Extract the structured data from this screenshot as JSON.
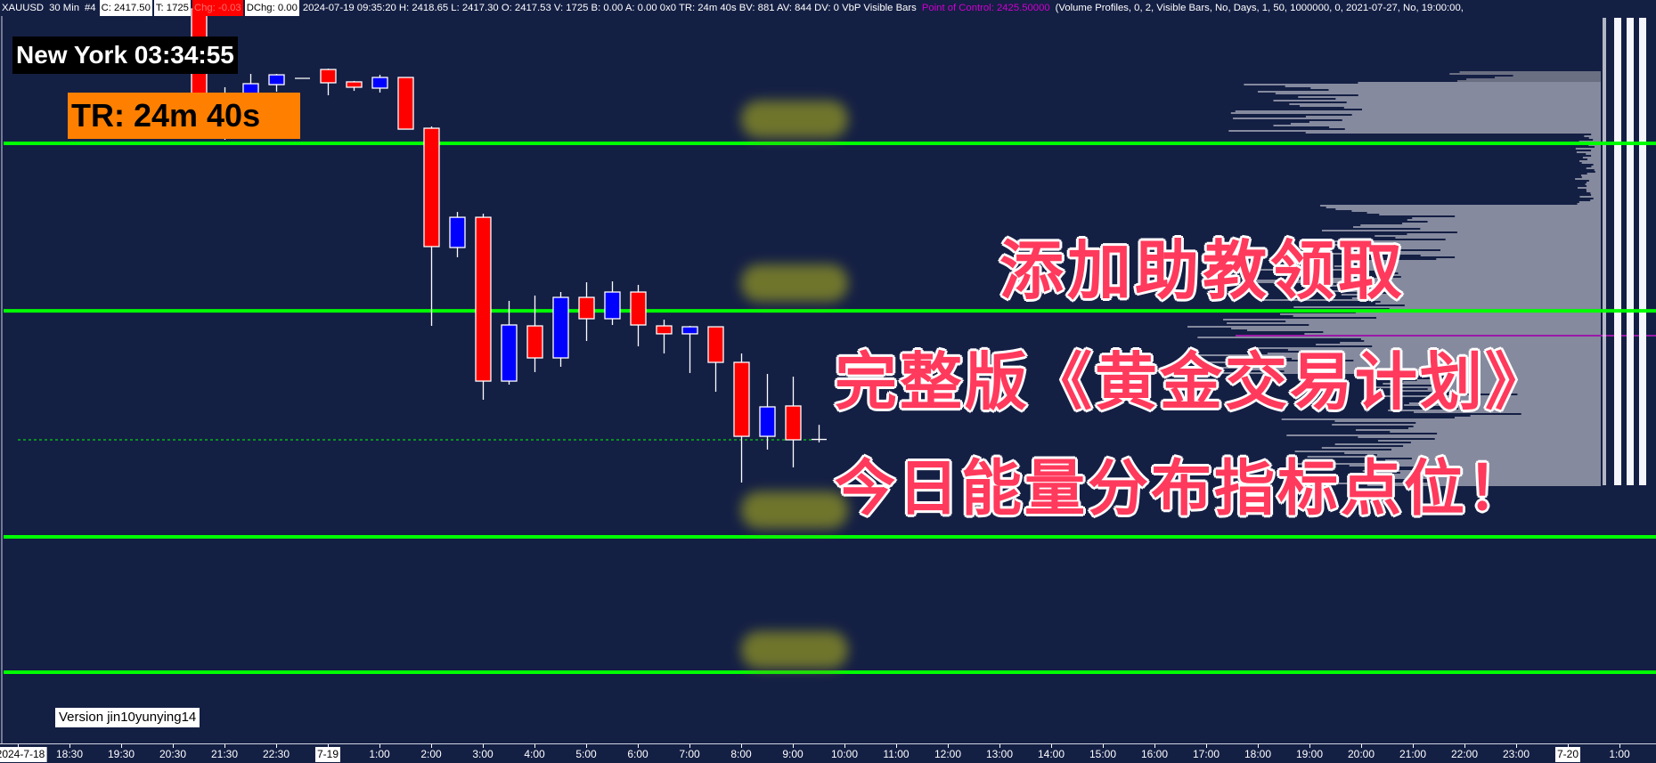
{
  "header": {
    "segments": [
      {
        "text": "XAUUSD",
        "style": "plain"
      },
      {
        "text": "30 Min",
        "style": "plain"
      },
      {
        "text": "#4",
        "style": "plain"
      },
      {
        "text": "C: 2417.50",
        "style": "box-white"
      },
      {
        "text": "T: 1725",
        "style": "box-white"
      },
      {
        "text": "Chg: -0.03",
        "style": "box-red"
      },
      {
        "text": "DChg: 0.00",
        "style": "box-white"
      },
      {
        "text": "2024-07-19 09:35:20 H: 2418.65 L: 2417.30 O: 2417.53 V: 1725 B: 0.00 A: 0.00 0x0 TR: 24m 40s BV: 881 AV: 844 DV: 0 VbP Visible Bars",
        "style": "plain"
      },
      {
        "text": "Point of Control: 2425.50000",
        "style": "magenta"
      },
      {
        "text": "(Volume Profiles, 0, 2, Visible Bars, No, Days, 1, 50, 1000000, 0, 2021-07-27, No, 19:00:00, ",
        "style": "plain"
      }
    ]
  },
  "clock_label": "New York 03:34:55",
  "time_remaining_label": "TR: 24m 40s",
  "version_label": "Version jin10yunying14",
  "promo": {
    "line1": "添加助教领取",
    "line2": "完整版《黄金交易计划》",
    "line3": "今日能量分布指标点位！",
    "color": "#ff3a5c"
  },
  "colors": {
    "background": "#141f44",
    "up_candle": "#0000ff",
    "down_candle": "#ff0000",
    "level_line": "#00ff00",
    "poc_line": "#9b19a8",
    "volume_profile": "#858a9e"
  },
  "chart_data": {
    "type": "candlestick",
    "symbol": "XAUUSD",
    "interval": "30 Min",
    "last_price": 2417.5,
    "point_of_control": 2425.5,
    "level_lines": [
      2440.27,
      2427.41,
      2410.05,
      2399.65
    ],
    "candles": [
      {
        "o": 2450.59,
        "h": 2452.0,
        "l": 2443.76,
        "c": 2443.76
      },
      {
        "o": 2443.4,
        "h": 2444.58,
        "l": 2440.54,
        "c": 2442.75
      },
      {
        "o": 2443.76,
        "h": 2445.6,
        "l": 2443.41,
        "c": 2444.85
      },
      {
        "o": 2444.78,
        "h": 2445.6,
        "l": 2444.24,
        "c": 2445.53
      },
      {
        "o": 2445.26,
        "h": 2445.26,
        "l": 2445.26,
        "c": 2445.26
      },
      {
        "o": 2445.94,
        "h": 2446.01,
        "l": 2443.96,
        "c": 2444.92
      },
      {
        "o": 2444.99,
        "h": 2445.06,
        "l": 2444.3,
        "c": 2444.58
      },
      {
        "o": 2444.51,
        "h": 2445.53,
        "l": 2444.17,
        "c": 2445.33
      },
      {
        "o": 2445.33,
        "h": 2445.33,
        "l": 2441.36,
        "c": 2441.36
      },
      {
        "o": 2441.43,
        "h": 2441.57,
        "l": 2426.25,
        "c": 2432.34
      },
      {
        "o": 2432.27,
        "h": 2435.0,
        "l": 2431.52,
        "c": 2434.59
      },
      {
        "o": 2434.59,
        "h": 2434.87,
        "l": 2420.58,
        "c": 2422.01
      },
      {
        "o": 2422.01,
        "h": 2428.17,
        "l": 2421.74,
        "c": 2426.32
      },
      {
        "o": 2426.25,
        "h": 2428.58,
        "l": 2422.7,
        "c": 2423.79
      },
      {
        "o": 2423.79,
        "h": 2428.85,
        "l": 2423.11,
        "c": 2428.44
      },
      {
        "o": 2428.44,
        "h": 2429.6,
        "l": 2425.09,
        "c": 2426.8
      },
      {
        "o": 2426.8,
        "h": 2429.67,
        "l": 2426.32,
        "c": 2428.85
      },
      {
        "o": 2428.85,
        "h": 2429.4,
        "l": 2424.68,
        "c": 2426.32
      },
      {
        "o": 2426.25,
        "h": 2426.73,
        "l": 2424.13,
        "c": 2425.64
      },
      {
        "o": 2425.64,
        "h": 2426.25,
        "l": 2422.63,
        "c": 2426.18
      },
      {
        "o": 2426.18,
        "h": 2426.18,
        "l": 2421.19,
        "c": 2423.45
      },
      {
        "o": 2423.45,
        "h": 2424.13,
        "l": 2414.22,
        "c": 2417.77
      },
      {
        "o": 2417.77,
        "h": 2422.56,
        "l": 2416.75,
        "c": 2420.03
      },
      {
        "o": 2420.1,
        "h": 2422.35,
        "l": 2415.38,
        "c": 2417.5
      },
      {
        "o": 2417.53,
        "h": 2418.65,
        "l": 2417.3,
        "c": 2417.5
      }
    ],
    "x_tick_labels": [
      {
        "text": "2024-7-18",
        "date": true
      },
      {
        "text": "18:30"
      },
      {
        "text": "19:30"
      },
      {
        "text": "20:30"
      },
      {
        "text": "21:30"
      },
      {
        "text": "22:30"
      },
      {
        "text": "7-19",
        "date": true
      },
      {
        "text": "1:00"
      },
      {
        "text": "2:00"
      },
      {
        "text": "3:00"
      },
      {
        "text": "4:00"
      },
      {
        "text": "5:00"
      },
      {
        "text": "6:00"
      },
      {
        "text": "7:00"
      },
      {
        "text": "8:00"
      },
      {
        "text": "9:00"
      },
      {
        "text": "10:00"
      },
      {
        "text": "11:00"
      },
      {
        "text": "12:00"
      },
      {
        "text": "13:00"
      },
      {
        "text": "14:00"
      },
      {
        "text": "15:00"
      },
      {
        "text": "16:00"
      },
      {
        "text": "17:00"
      },
      {
        "text": "18:00"
      },
      {
        "text": "19:00"
      },
      {
        "text": "20:00"
      },
      {
        "text": "21:00"
      },
      {
        "text": "22:00"
      },
      {
        "text": "23:00"
      },
      {
        "text": "7-20",
        "date": true
      },
      {
        "text": "1:00"
      }
    ]
  }
}
